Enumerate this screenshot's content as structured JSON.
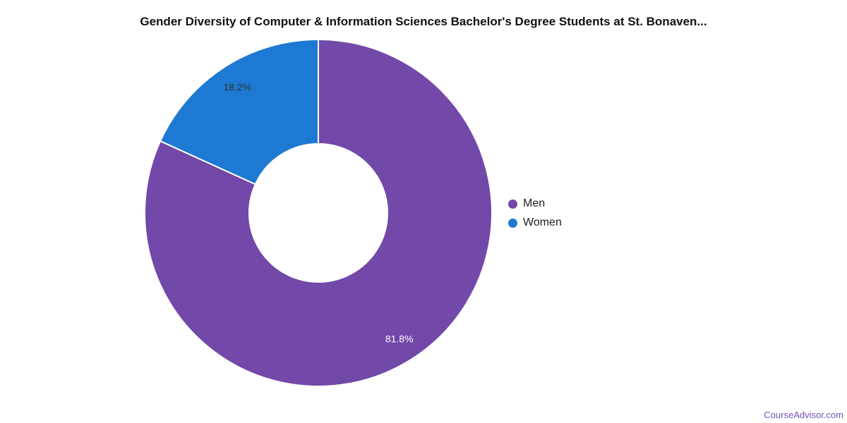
{
  "title": "Gender Diversity of Computer & Information Sciences Bachelor's Degree Students at St. Bonaven...",
  "watermark": "CourseAdvisor.com",
  "chart_data": {
    "type": "pie",
    "donut": true,
    "categories": [
      "Men",
      "Women"
    ],
    "values": [
      81.8,
      18.2
    ],
    "unit": "%",
    "slice_labels": [
      "81.8%",
      "18.2%"
    ],
    "colors": [
      "#7248a9",
      "#1d79d2"
    ],
    "slice_label_colors": [
      "#ffffff",
      "#333333"
    ],
    "title": "Gender Diversity of Computer & Information Sciences Bachelor's Degree Students at St. Bonaven...",
    "start_angle_deg": 0,
    "direction": "clockwise",
    "legend_position": "right"
  },
  "legend": {
    "items": [
      {
        "label": "Men",
        "color": "#7248a9"
      },
      {
        "label": "Women",
        "color": "#1d79d2"
      }
    ]
  }
}
